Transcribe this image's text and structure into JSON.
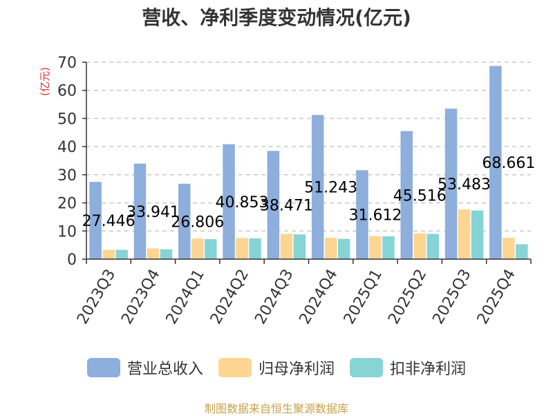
{
  "chart_data": {
    "type": "bar",
    "title": "营收、净利季度变动情况(亿元)",
    "ylabel": "(亿元)",
    "xlabel": "",
    "ylim": [
      0,
      70
    ],
    "yticks": [
      0,
      10,
      20,
      30,
      40,
      50,
      60,
      70
    ],
    "grid": true,
    "legend_position": "bottom",
    "categories": [
      "2023Q3",
      "2023Q4",
      "2024Q1",
      "2024Q2",
      "2024Q3",
      "2024Q4",
      "2025Q1",
      "2025Q2",
      "2025Q3",
      "2025Q4"
    ],
    "series": [
      {
        "name": "营业总收入",
        "color": "#8eaedc",
        "values": [
          27.446,
          33.941,
          26.806,
          40.853,
          38.471,
          51.243,
          31.612,
          45.516,
          53.483,
          68.661
        ]
      },
      {
        "name": "归母净利润",
        "color": "#fdd592",
        "values": [
          3.3,
          3.8,
          7.3,
          7.5,
          9.0,
          7.6,
          8.2,
          9.2,
          17.7,
          7.6
        ]
      },
      {
        "name": "扣非净利润",
        "color": "#86d4d6",
        "values": [
          3.3,
          3.5,
          7.1,
          7.4,
          8.8,
          7.2,
          8.1,
          9.0,
          17.3,
          5.3
        ]
      }
    ],
    "data_labels": [
      "27.446",
      "33.941",
      "26.806",
      "40.853",
      "38.471",
      "51.243",
      "31.612",
      "45.516",
      "53.483",
      "68.661"
    ]
  },
  "colors": {
    "axis": "#333333",
    "grid": "#c8c8c8",
    "ylabel": "#e0302c",
    "source": "#c8a04a"
  },
  "footer": {
    "source": "制图数据来自恒生聚源数据库"
  }
}
